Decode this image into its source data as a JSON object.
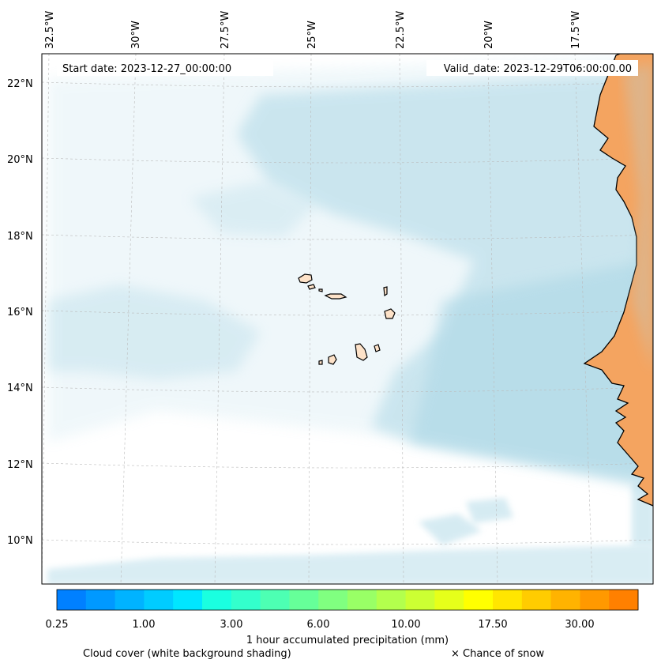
{
  "map": {
    "start_date": "Start date: 2023-12-27_00:00:00",
    "valid_date": "Valid_date: 2023-12-29T06:00:00.00",
    "lon_labels": [
      "32.5°W",
      "30°W",
      "27.5°W",
      "25°W",
      "22.5°W",
      "20°W",
      "17.5°W"
    ],
    "lat_labels": [
      "22°N",
      "20°N",
      "18°N",
      "16°N",
      "14°N",
      "12°N",
      "10°N"
    ],
    "land_color": "#f4a460",
    "island_color": "#fde2c8",
    "cloud_color": "#add8e6"
  },
  "colorbar": {
    "tick_labels": [
      "0.25",
      "1.00",
      "3.00",
      "6.00",
      "10.00",
      "17.50",
      "30.00"
    ],
    "label": "1 hour accumulated precipitation (mm)",
    "colors": [
      "#0080ff",
      "#0099ff",
      "#00b3ff",
      "#00ccff",
      "#00e6ff",
      "#1affe0",
      "#33ffcc",
      "#4dffb3",
      "#66ff99",
      "#80ff80",
      "#99ff66",
      "#b3ff4d",
      "#ccff33",
      "#e6ff1a",
      "#ffff00",
      "#ffe600",
      "#ffcc00",
      "#ffb300",
      "#ff9900",
      "#ff8000",
      "#ff6600",
      "#ff4d00"
    ]
  },
  "legend": {
    "cloud_cover": "Cloud cover (white background shading)",
    "snow": "× Chance of snow"
  }
}
